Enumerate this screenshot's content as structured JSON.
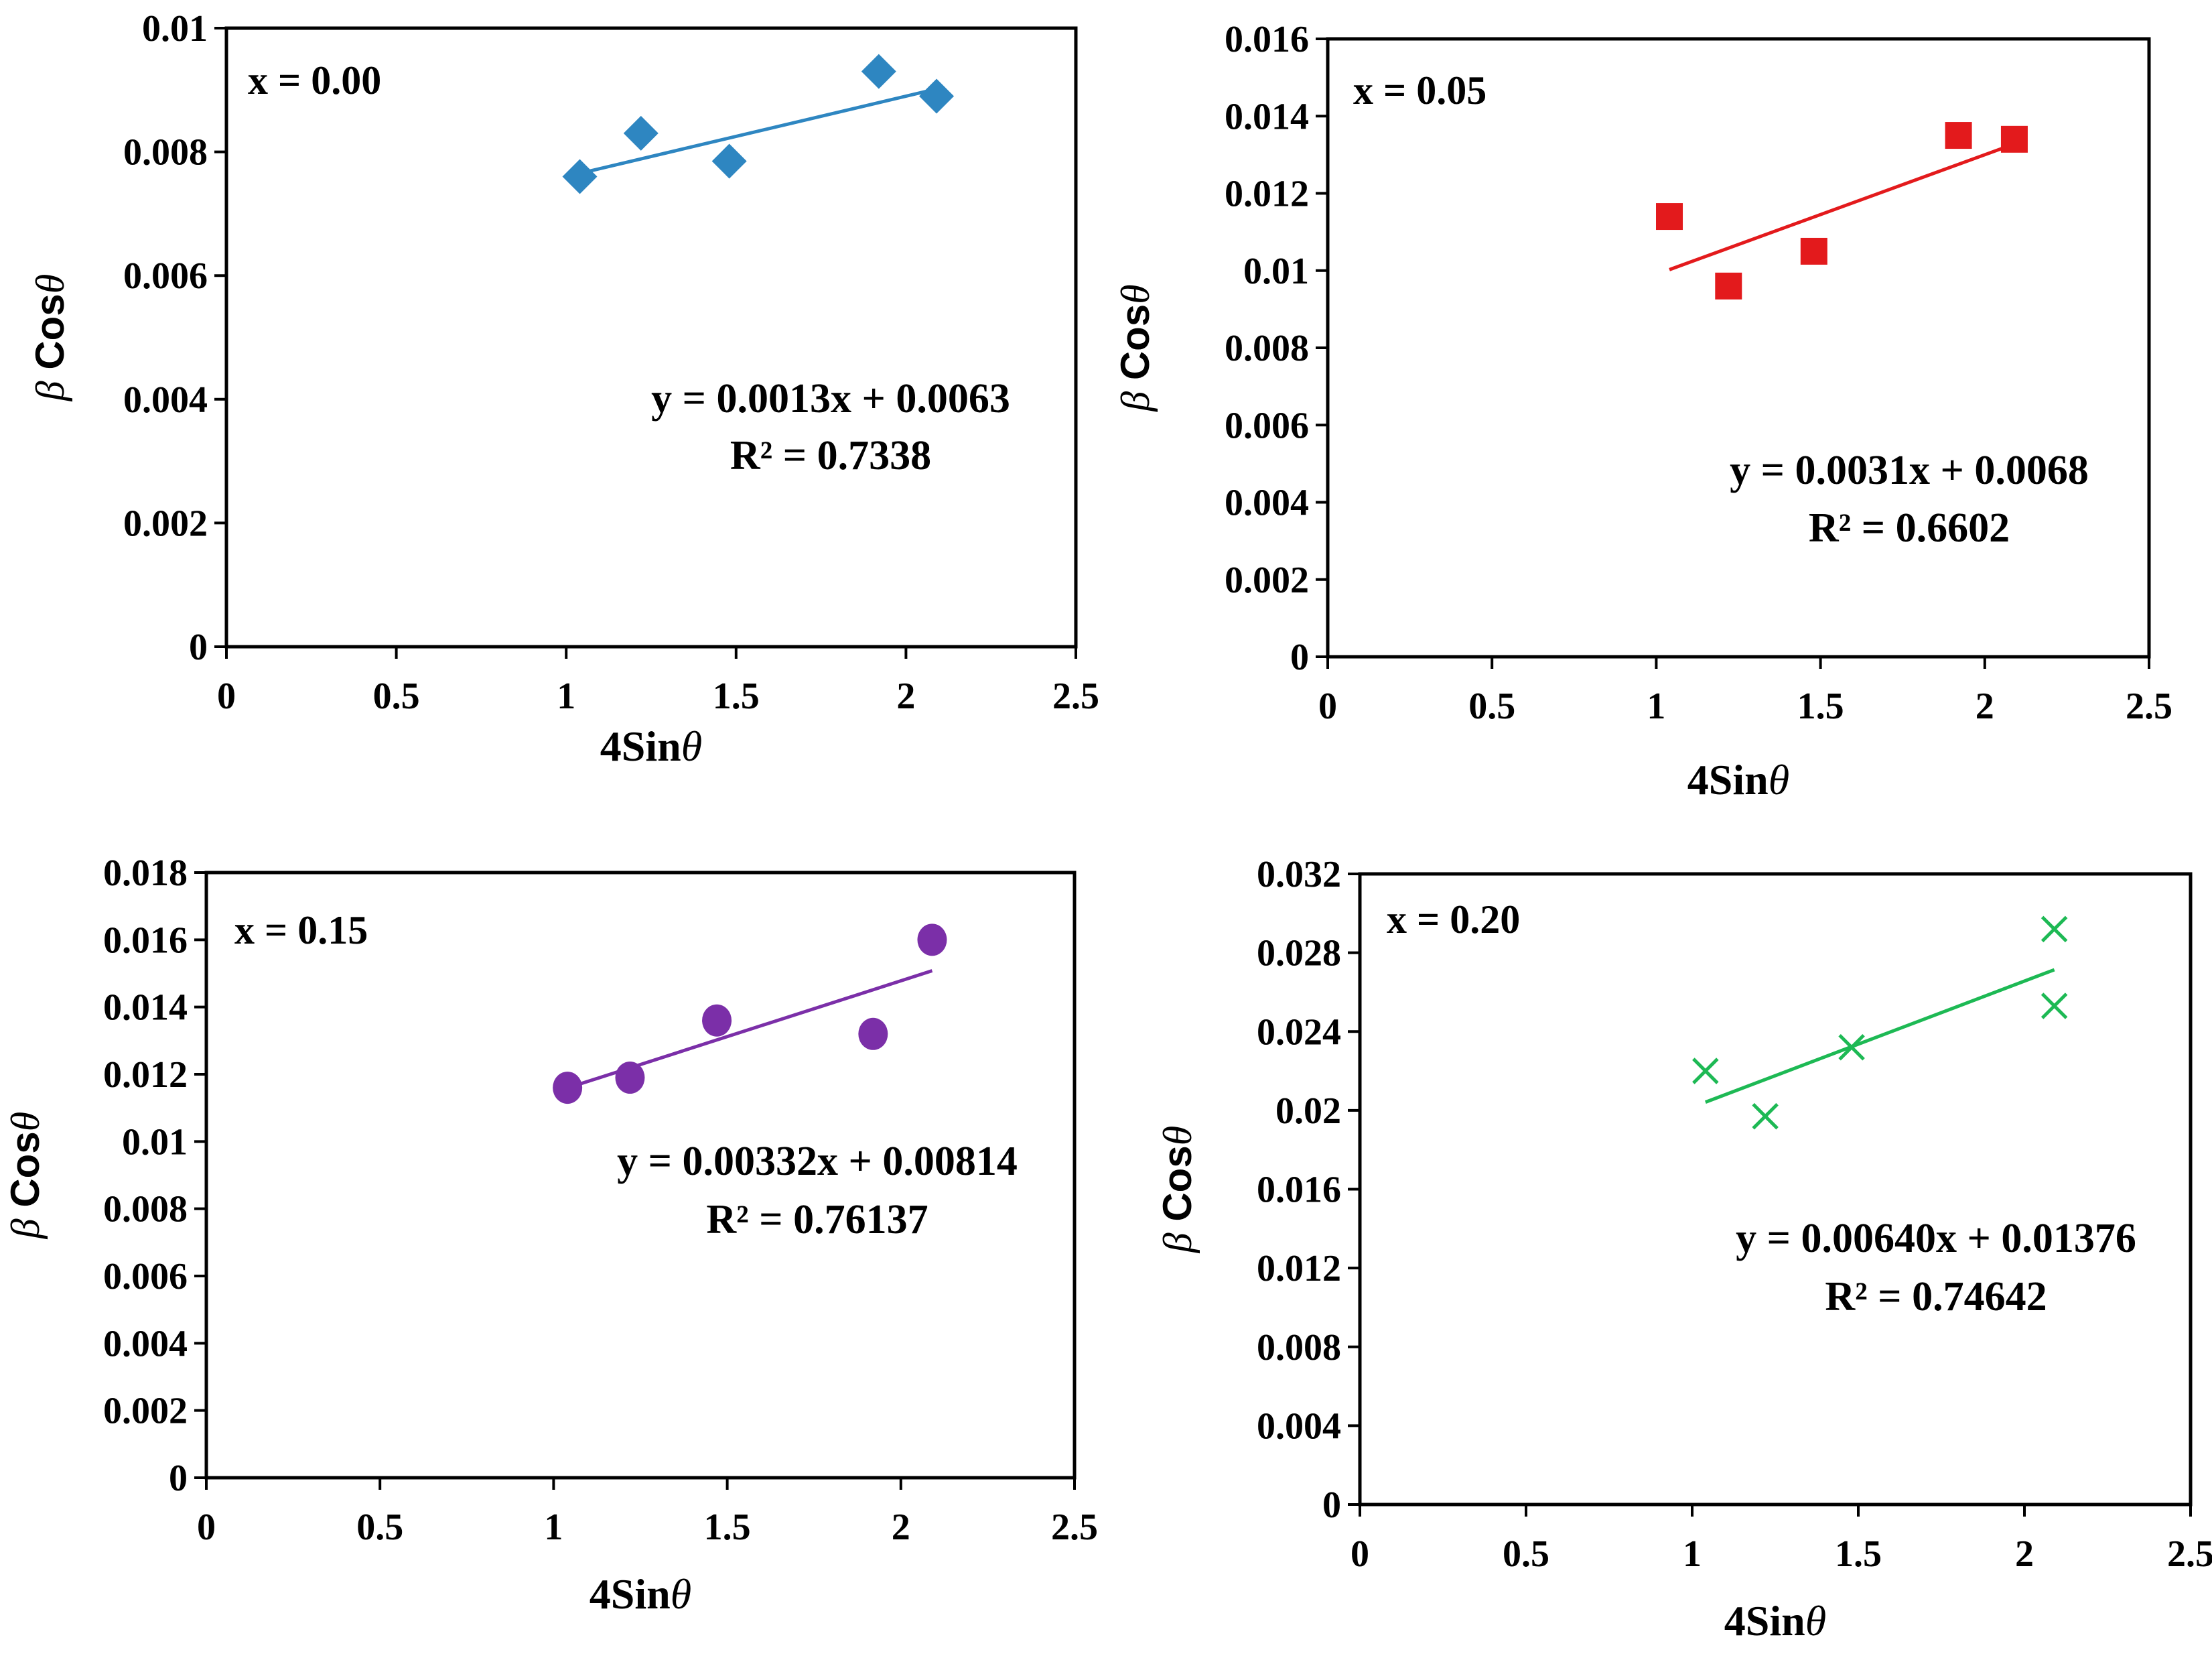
{
  "chart_data": [
    {
      "type": "scatter",
      "panel_label": "x = 0.00",
      "xlabel": "4Sinθ",
      "ylabel": "β Cosθ",
      "xlim": [
        0,
        2.5
      ],
      "ylim": [
        0,
        0.01
      ],
      "x_ticks": [
        "0",
        "0.5",
        "1",
        "1.5",
        "2",
        "2.5"
      ],
      "y_ticks": [
        "0",
        "0.002",
        "0.004",
        "0.006",
        "0.008",
        "0.01"
      ],
      "grid": false,
      "marker": "diamond",
      "color": "#2E86C1",
      "series": [
        {
          "x": [
            1.04,
            1.22,
            1.48,
            1.92,
            2.09
          ],
          "y": [
            0.0076,
            0.0083,
            0.00785,
            0.0093,
            0.0089
          ]
        }
      ],
      "trendline": {
        "slope": 0.0013,
        "intercept": 0.0063,
        "x_range": [
          1.04,
          2.09
        ]
      },
      "equation": "y = 0.0013x + 0.0063",
      "r_squared": "R² = 0.7338"
    },
    {
      "type": "scatter",
      "panel_label": "x = 0.05",
      "xlabel": "4Sinθ",
      "ylabel": "β Cosθ",
      "xlim": [
        0,
        2.5
      ],
      "ylim": [
        0,
        0.016
      ],
      "x_ticks": [
        "0",
        "0.5",
        "1",
        "1.5",
        "2",
        "2.5"
      ],
      "y_ticks": [
        "0",
        "0.002",
        "0.004",
        "0.006",
        "0.008",
        "0.01",
        "0.012",
        "0.014",
        "0.016"
      ],
      "grid": false,
      "marker": "square",
      "color": "#E31A1C",
      "series": [
        {
          "x": [
            1.04,
            1.22,
            1.48,
            1.92,
            2.09
          ],
          "y": [
            0.0114,
            0.0096,
            0.0105,
            0.0135,
            0.0134
          ]
        }
      ],
      "trendline": {
        "slope": 0.0031,
        "intercept": 0.0068,
        "x_range": [
          1.04,
          2.09
        ]
      },
      "equation": "y = 0.0031x + 0.0068",
      "r_squared": "R² = 0.6602"
    },
    {
      "type": "scatter",
      "panel_label": "x = 0.15",
      "xlabel": "4Sinθ",
      "ylabel": "β Cosθ",
      "xlim": [
        0,
        2.5
      ],
      "ylim": [
        0,
        0.018
      ],
      "x_ticks": [
        "0",
        "0.5",
        "1",
        "1.5",
        "2",
        "2.5"
      ],
      "y_ticks": [
        "0",
        "0.002",
        "0.004",
        "0.006",
        "0.008",
        "0.01",
        "0.012",
        "0.014",
        "0.016",
        "0.018"
      ],
      "grid": false,
      "marker": "circle",
      "color": "#7B2FA8",
      "series": [
        {
          "x": [
            1.04,
            1.22,
            1.47,
            1.92,
            2.09
          ],
          "y": [
            0.0116,
            0.0119,
            0.0136,
            0.0132,
            0.016
          ]
        }
      ],
      "trendline": {
        "slope": 0.00332,
        "intercept": 0.00814,
        "x_range": [
          1.04,
          2.09
        ]
      },
      "equation": "y = 0.00332x + 0.00814",
      "r_squared": "R² = 0.76137"
    },
    {
      "type": "scatter",
      "panel_label": "x = 0.20",
      "xlabel": "4Sinθ",
      "ylabel": "β Cosθ",
      "xlim": [
        0,
        2.5
      ],
      "ylim": [
        0,
        0.032
      ],
      "x_ticks": [
        "0",
        "0.5",
        "1",
        "1.5",
        "2",
        "2.5"
      ],
      "y_ticks": [
        "0",
        "0.004",
        "0.008",
        "0.012",
        "0.016",
        "0.02",
        "0.024",
        "0.028",
        "0.032"
      ],
      "grid": false,
      "marker": "x",
      "color": "#1DB954",
      "series": [
        {
          "x": [
            1.04,
            1.22,
            1.48,
            2.09,
            2.09
          ],
          "y": [
            0.022,
            0.0197,
            0.0232,
            0.0292,
            0.0253
          ]
        }
      ],
      "trendline": {
        "slope": 0.0064,
        "intercept": 0.01376,
        "x_range": [
          1.04,
          2.09
        ]
      },
      "equation": "y = 0.00640x + 0.01376",
      "r_squared": "R² = 0.74642"
    }
  ]
}
